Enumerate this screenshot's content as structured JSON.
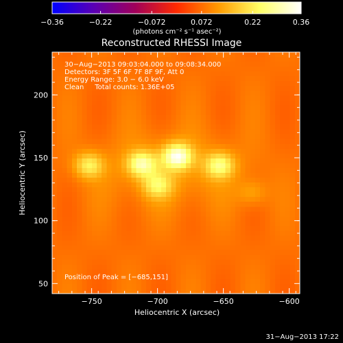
{
  "chart_data": {
    "type": "heatmap",
    "title": "Reconstructed RHESSI Image",
    "xlabel": "Heliocentric X (arcsec)",
    "ylabel": "Heliocentric Y (arcsec)",
    "xlim": [
      -780,
      -592
    ],
    "ylim": [
      42,
      234
    ],
    "x_ticks": [
      -750,
      -700,
      -650,
      -600
    ],
    "x_tick_labels": [
      "−750",
      "−700",
      "−650",
      "−600"
    ],
    "y_ticks": [
      50,
      100,
      150,
      200
    ],
    "y_tick_labels": [
      "50",
      "100",
      "150",
      "200"
    ],
    "colorbar": {
      "range": [
        -0.36,
        0.36
      ],
      "tick_values": [
        -0.36,
        -0.22,
        -0.072,
        0.072,
        0.22,
        0.36
      ],
      "tick_labels": [
        "−0.36",
        "−0.22",
        "−0.072",
        "0.072",
        "0.22",
        "0.36"
      ],
      "unit_label": "(photons cm⁻² s⁻¹ asec⁻²)",
      "colors": [
        "#0000ff",
        "#5a00b4",
        "#a0005a",
        "#ff2a00",
        "#ff9a00",
        "#ffff66",
        "#ffffff"
      ]
    },
    "info_lines": [
      "30−Aug−2013 09:03:04.000 to 09:08:34.000",
      "Detectors: 3F 5F 6F 7F 8F 9F, Att 0",
      "Energy Range: 3.0 − 6.0 keV",
      "Clean     Total counts: 1.36E+05"
    ],
    "peak_label": "Position of Peak = [−685,151]",
    "peak_position": [
      -685,
      151
    ],
    "sources": [
      {
        "x": -685,
        "y": 151,
        "peak": 0.36
      },
      {
        "x": -712,
        "y": 145,
        "peak": 0.3
      },
      {
        "x": -752,
        "y": 144,
        "peak": 0.24
      },
      {
        "x": -653,
        "y": 144,
        "peak": 0.27
      },
      {
        "x": -700,
        "y": 128,
        "peak": 0.22
      },
      {
        "x": -628,
        "y": 122,
        "peak": 0.14
      }
    ],
    "background_level": 0.075,
    "grid": false
  },
  "footer": {
    "date": "31−Aug−2013 17:22"
  }
}
